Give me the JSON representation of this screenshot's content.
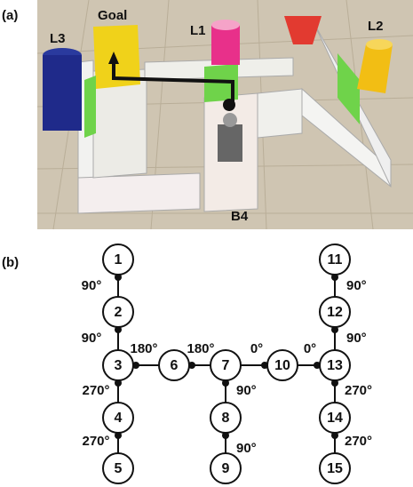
{
  "panel_a": {
    "label": "(a)",
    "annotations": [
      "Goal",
      "L1",
      "L2",
      "L3",
      "B4"
    ]
  },
  "panel_b": {
    "label": "(b)",
    "nodes": [
      "1",
      "2",
      "3",
      "4",
      "5",
      "6",
      "7",
      "8",
      "9",
      "10",
      "11",
      "12",
      "13",
      "14",
      "15"
    ],
    "edges": [
      "90°",
      "90°",
      "270°",
      "270°",
      "180°",
      "180°",
      "0°",
      "0°",
      "90°",
      "90°",
      "90°",
      "90°",
      "270°",
      "270°"
    ]
  }
}
